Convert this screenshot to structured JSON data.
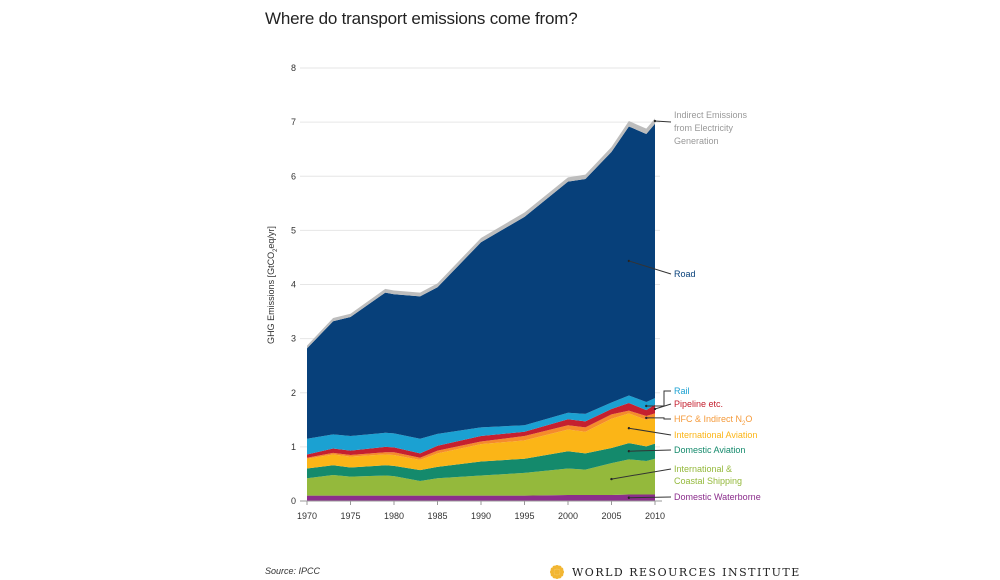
{
  "chart_data": {
    "type": "area",
    "stacked": true,
    "title": "Where do transport emissions come from?",
    "xlabel": "",
    "ylabel": "GHG Emissions [GtCO2eq/yr]",
    "xlim": [
      1970,
      2010
    ],
    "ylim": [
      0,
      8
    ],
    "xticks": [
      "1970",
      "1975",
      "1980",
      "1985",
      "1990",
      "1995",
      "2000",
      "2005",
      "2010"
    ],
    "yticks": [
      "0",
      "1",
      "2",
      "3",
      "4",
      "5",
      "6",
      "7",
      "8"
    ],
    "grid": true,
    "legend": "right, direct labels",
    "x": [
      1970,
      1973,
      1975,
      1979,
      1980,
      1983,
      1985,
      1990,
      1995,
      2000,
      2002,
      2005,
      2007,
      2009,
      2010
    ],
    "series": [
      {
        "name": "Domestic Waterborne",
        "color": "#8b2d8c",
        "values": [
          0.1,
          0.1,
          0.1,
          0.1,
          0.1,
          0.1,
          0.1,
          0.1,
          0.1,
          0.11,
          0.11,
          0.11,
          0.12,
          0.12,
          0.12
        ]
      },
      {
        "name": "International & Coastal Shipping",
        "color": "#94b93c",
        "values": [
          0.32,
          0.38,
          0.35,
          0.37,
          0.36,
          0.27,
          0.32,
          0.37,
          0.42,
          0.49,
          0.47,
          0.59,
          0.65,
          0.62,
          0.66
        ]
      },
      {
        "name": "Domestic Aviation",
        "color": "#148a6c",
        "values": [
          0.18,
          0.18,
          0.17,
          0.19,
          0.19,
          0.2,
          0.21,
          0.26,
          0.26,
          0.32,
          0.3,
          0.28,
          0.3,
          0.27,
          0.28
        ]
      },
      {
        "name": "International Aviation",
        "color": "#fbb517",
        "values": [
          0.18,
          0.2,
          0.2,
          0.2,
          0.2,
          0.19,
          0.25,
          0.32,
          0.34,
          0.4,
          0.4,
          0.54,
          0.55,
          0.49,
          0.49
        ]
      },
      {
        "name": "HFC & Indirect N2O",
        "color": "#f58b2b",
        "values": [
          0.02,
          0.03,
          0.03,
          0.04,
          0.05,
          0.04,
          0.05,
          0.05,
          0.08,
          0.08,
          0.08,
          0.08,
          0.05,
          0.07,
          0.07
        ]
      },
      {
        "name": "Pipeline etc.",
        "color": "#c5202f",
        "values": [
          0.06,
          0.08,
          0.08,
          0.1,
          0.09,
          0.08,
          0.09,
          0.1,
          0.08,
          0.11,
          0.11,
          0.1,
          0.14,
          0.11,
          0.16
        ]
      },
      {
        "name": "Rail",
        "color": "#1ba1d2",
        "values": [
          0.29,
          0.26,
          0.27,
          0.26,
          0.26,
          0.27,
          0.22,
          0.16,
          0.12,
          0.12,
          0.14,
          0.12,
          0.14,
          0.15,
          0.12
        ]
      },
      {
        "name": "Road",
        "color": "#07407a",
        "values": [
          1.67,
          2.09,
          2.2,
          2.59,
          2.57,
          2.63,
          2.71,
          3.42,
          3.85,
          4.27,
          4.34,
          4.63,
          4.97,
          4.95,
          5.07
        ]
      },
      {
        "name": "Indirect Emissions from Electricity Generation",
        "color": "#bdbdbd",
        "values": [
          0.05,
          0.06,
          0.06,
          0.07,
          0.07,
          0.07,
          0.07,
          0.08,
          0.08,
          0.08,
          0.08,
          0.09,
          0.1,
          0.1,
          0.1
        ]
      }
    ],
    "labels": {
      "indirect": [
        "Indirect Emissions",
        "from Electricity",
        "Generation"
      ],
      "road": "Road",
      "rail": "Rail",
      "pipeline": "Pipeline etc.",
      "hfc_main": "HFC & Indirect N",
      "hfc_sub": "2",
      "hfc_tail": "O",
      "intl_aviation": "International Aviation",
      "domestic_aviation": "Domestic Aviation",
      "shipping": [
        "International &",
        "Coastal Shipping"
      ],
      "waterborne": "Domestic Waterborne"
    },
    "ylabel_parts": {
      "pre": "GHG Emissions [GtCO",
      "sub": "2",
      "post": "eq/yr]"
    }
  },
  "footer": {
    "source": "Source: IPCC",
    "logo_text": "WORLD RESOURCES INSTITUTE",
    "logo_color": "#f2b632"
  }
}
